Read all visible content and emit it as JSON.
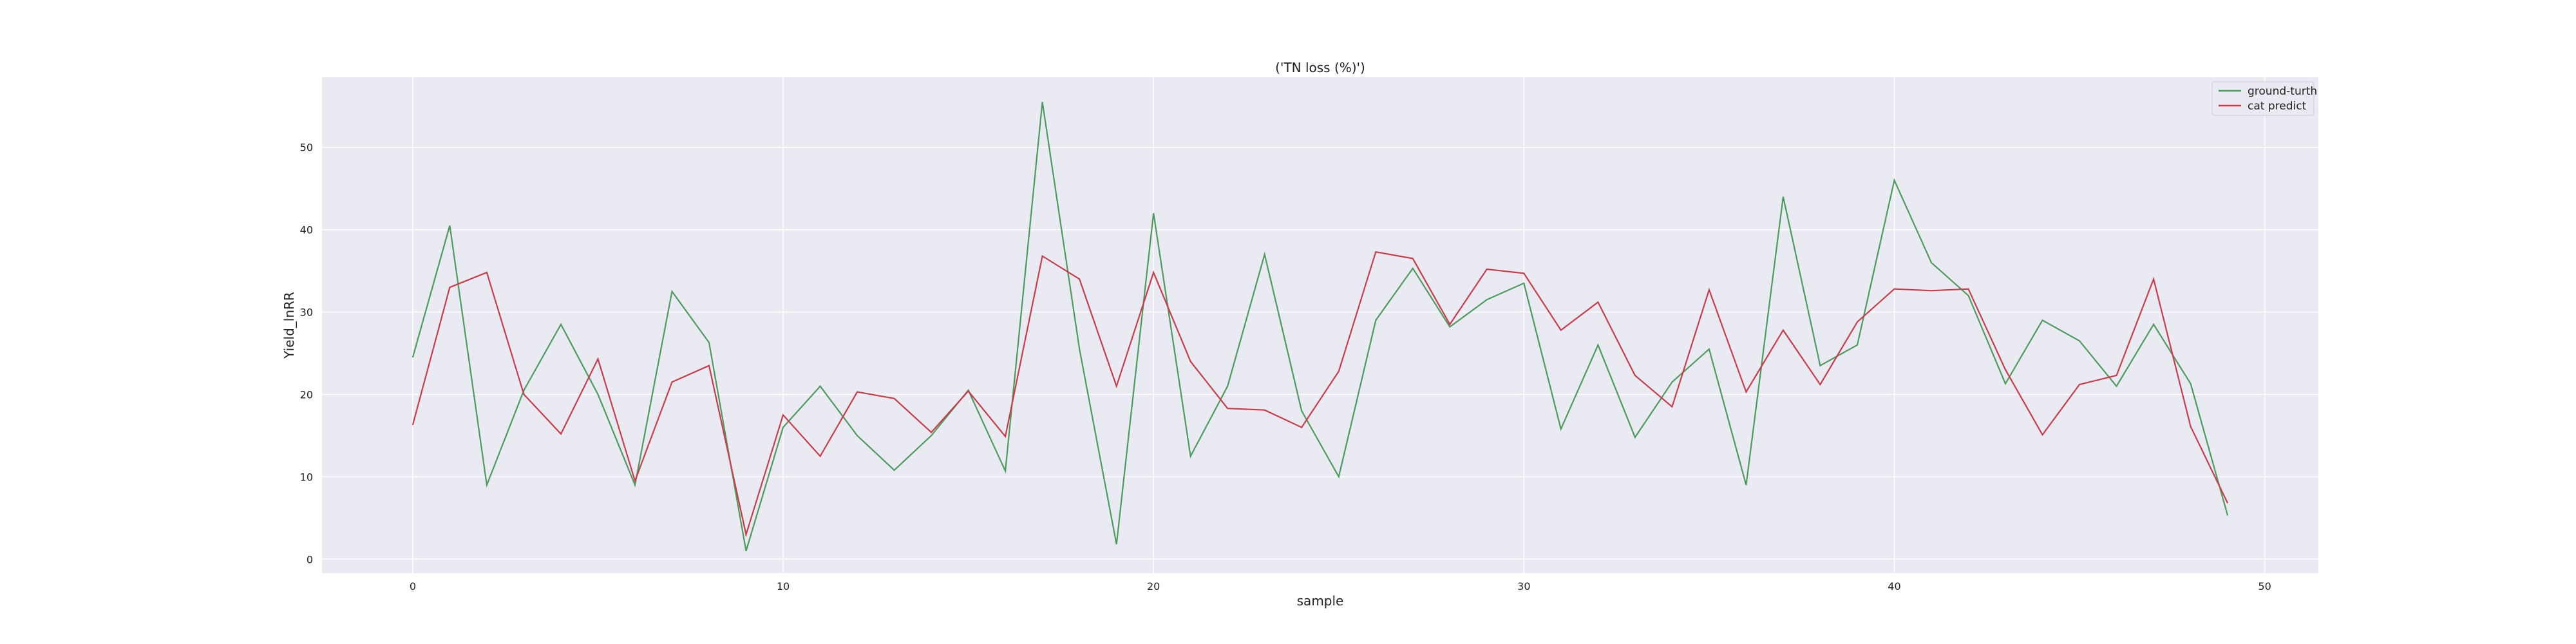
{
  "chart_data": {
    "type": "line",
    "title": "('TN loss (%)')",
    "xlabel": "sample",
    "ylabel": "Yield_lnRR",
    "xlim": [
      -2.45,
      51.45
    ],
    "ylim": [
      -1.7,
      58.5
    ],
    "xticks": [
      0,
      10,
      20,
      30,
      40,
      50
    ],
    "yticks": [
      0,
      10,
      20,
      30,
      40,
      50
    ],
    "grid": true,
    "legend_position": "top-right",
    "x": [
      0,
      1,
      2,
      3,
      4,
      5,
      6,
      7,
      8,
      9,
      10,
      11,
      12,
      13,
      14,
      15,
      16,
      17,
      18,
      19,
      20,
      21,
      22,
      23,
      24,
      25,
      26,
      27,
      28,
      29,
      30,
      31,
      32,
      33,
      34,
      35,
      36,
      37,
      38,
      39,
      40,
      41,
      42,
      43,
      44,
      45,
      46,
      47,
      48,
      49
    ],
    "series": [
      {
        "name": "ground-turth",
        "color": "#4c9a5e",
        "values": [
          24.5,
          40.5,
          9.0,
          20.5,
          28.5,
          20.0,
          9.0,
          32.5,
          26.3,
          1.0,
          16.0,
          21.0,
          15.0,
          10.8,
          15.0,
          20.5,
          10.7,
          55.5,
          25.5,
          1.8,
          42.0,
          12.5,
          21.0,
          37.0,
          18.0,
          10.0,
          29.0,
          35.3,
          28.2,
          31.5,
          33.5,
          15.8,
          26.0,
          14.8,
          21.5,
          25.5,
          9.0,
          44.0,
          23.5,
          26.0,
          46.0,
          36.0,
          32.0,
          21.3,
          29.0,
          26.5,
          21.0,
          28.5,
          21.3,
          5.3
        ]
      },
      {
        "name": "cat predict",
        "color": "#c93a4a",
        "values": [
          16.3,
          33.0,
          34.8,
          20.0,
          15.2,
          24.3,
          9.5,
          21.5,
          23.5,
          3.0,
          17.5,
          12.5,
          20.3,
          19.5,
          15.4,
          20.4,
          14.9,
          36.8,
          34.0,
          21.0,
          34.8,
          24.0,
          18.3,
          18.1,
          16.0,
          22.8,
          37.3,
          36.5,
          28.5,
          35.2,
          34.7,
          27.8,
          31.2,
          22.3,
          18.5,
          32.7,
          20.3,
          27.8,
          21.2,
          28.8,
          32.8,
          32.6,
          32.8,
          23.0,
          15.1,
          21.2,
          22.3,
          34.0,
          16.1,
          6.8
        ]
      }
    ]
  }
}
